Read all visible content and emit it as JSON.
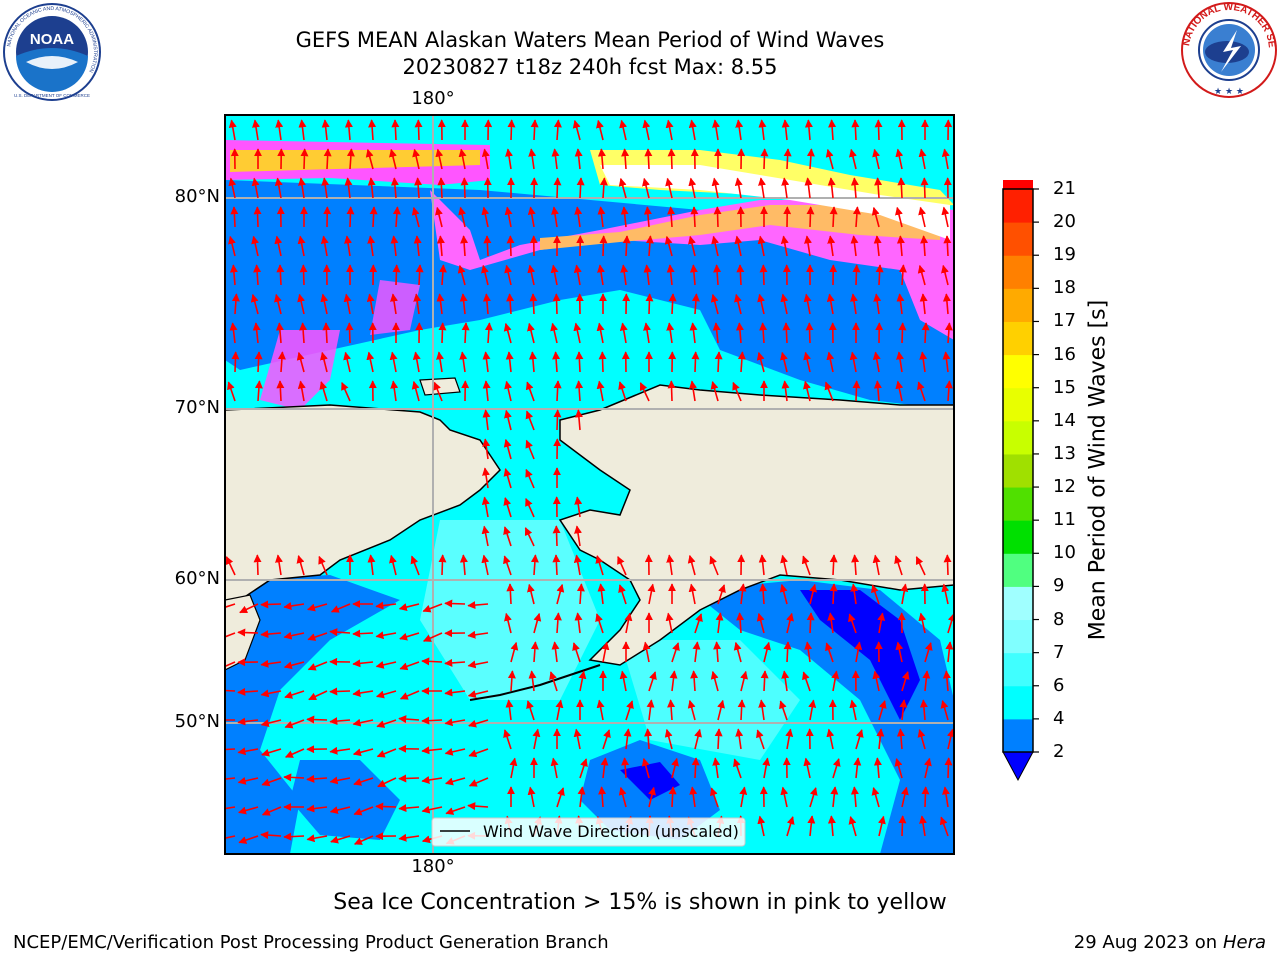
{
  "header": {
    "title_line1": "GEFS MEAN Alaskan Waters Mean Period of Wind Waves",
    "title_line2": "20230827 t18z 240h fcst   Max: 8.55"
  },
  "logos": {
    "noaa_text": "NOAA",
    "noaa_ring_text": "NATIONAL OCEANIC AND ATMOSPHERIC ADMINISTRATION",
    "noaa_bottom_text": "U.S. DEPARTMENT OF COMMERCE",
    "nws_ring_text": "NATIONAL WEATHER SERVICE"
  },
  "map": {
    "lon_label_top": "180°",
    "lon_label_bottom": "180°",
    "lat_labels": [
      "80°N",
      "70°N",
      "60°N",
      "50°N"
    ],
    "legend_text": "Wind Wave Direction (unscaled)"
  },
  "colorbar": {
    "label": "Mean Period of Wind Waves [s]",
    "ticks": [
      "2",
      "4",
      "6",
      "7",
      "8",
      "9",
      "10",
      "11",
      "12",
      "13",
      "14",
      "15",
      "16",
      "17",
      "18",
      "19",
      "20",
      "21"
    ],
    "colors": [
      "#0000ff",
      "#0080ff",
      "#00ffff",
      "#40ffff",
      "#80ffff",
      "#a0ffff",
      "#50ff80",
      "#00e000",
      "#50e000",
      "#a0e000",
      "#c8ff00",
      "#e8ff00",
      "#ffff00",
      "#ffd000",
      "#ffaa00",
      "#ff8000",
      "#ff5000",
      "#ff2000",
      "#ff0000"
    ]
  },
  "notes": {
    "ice_note": "Sea Ice Concentration > 15% is shown in pink to yellow",
    "footer_left": "NCEP/EMC/Verification Post Processing Product Generation Branch",
    "footer_date": "29 Aug 2023 on",
    "footer_machine": "Hera"
  }
}
